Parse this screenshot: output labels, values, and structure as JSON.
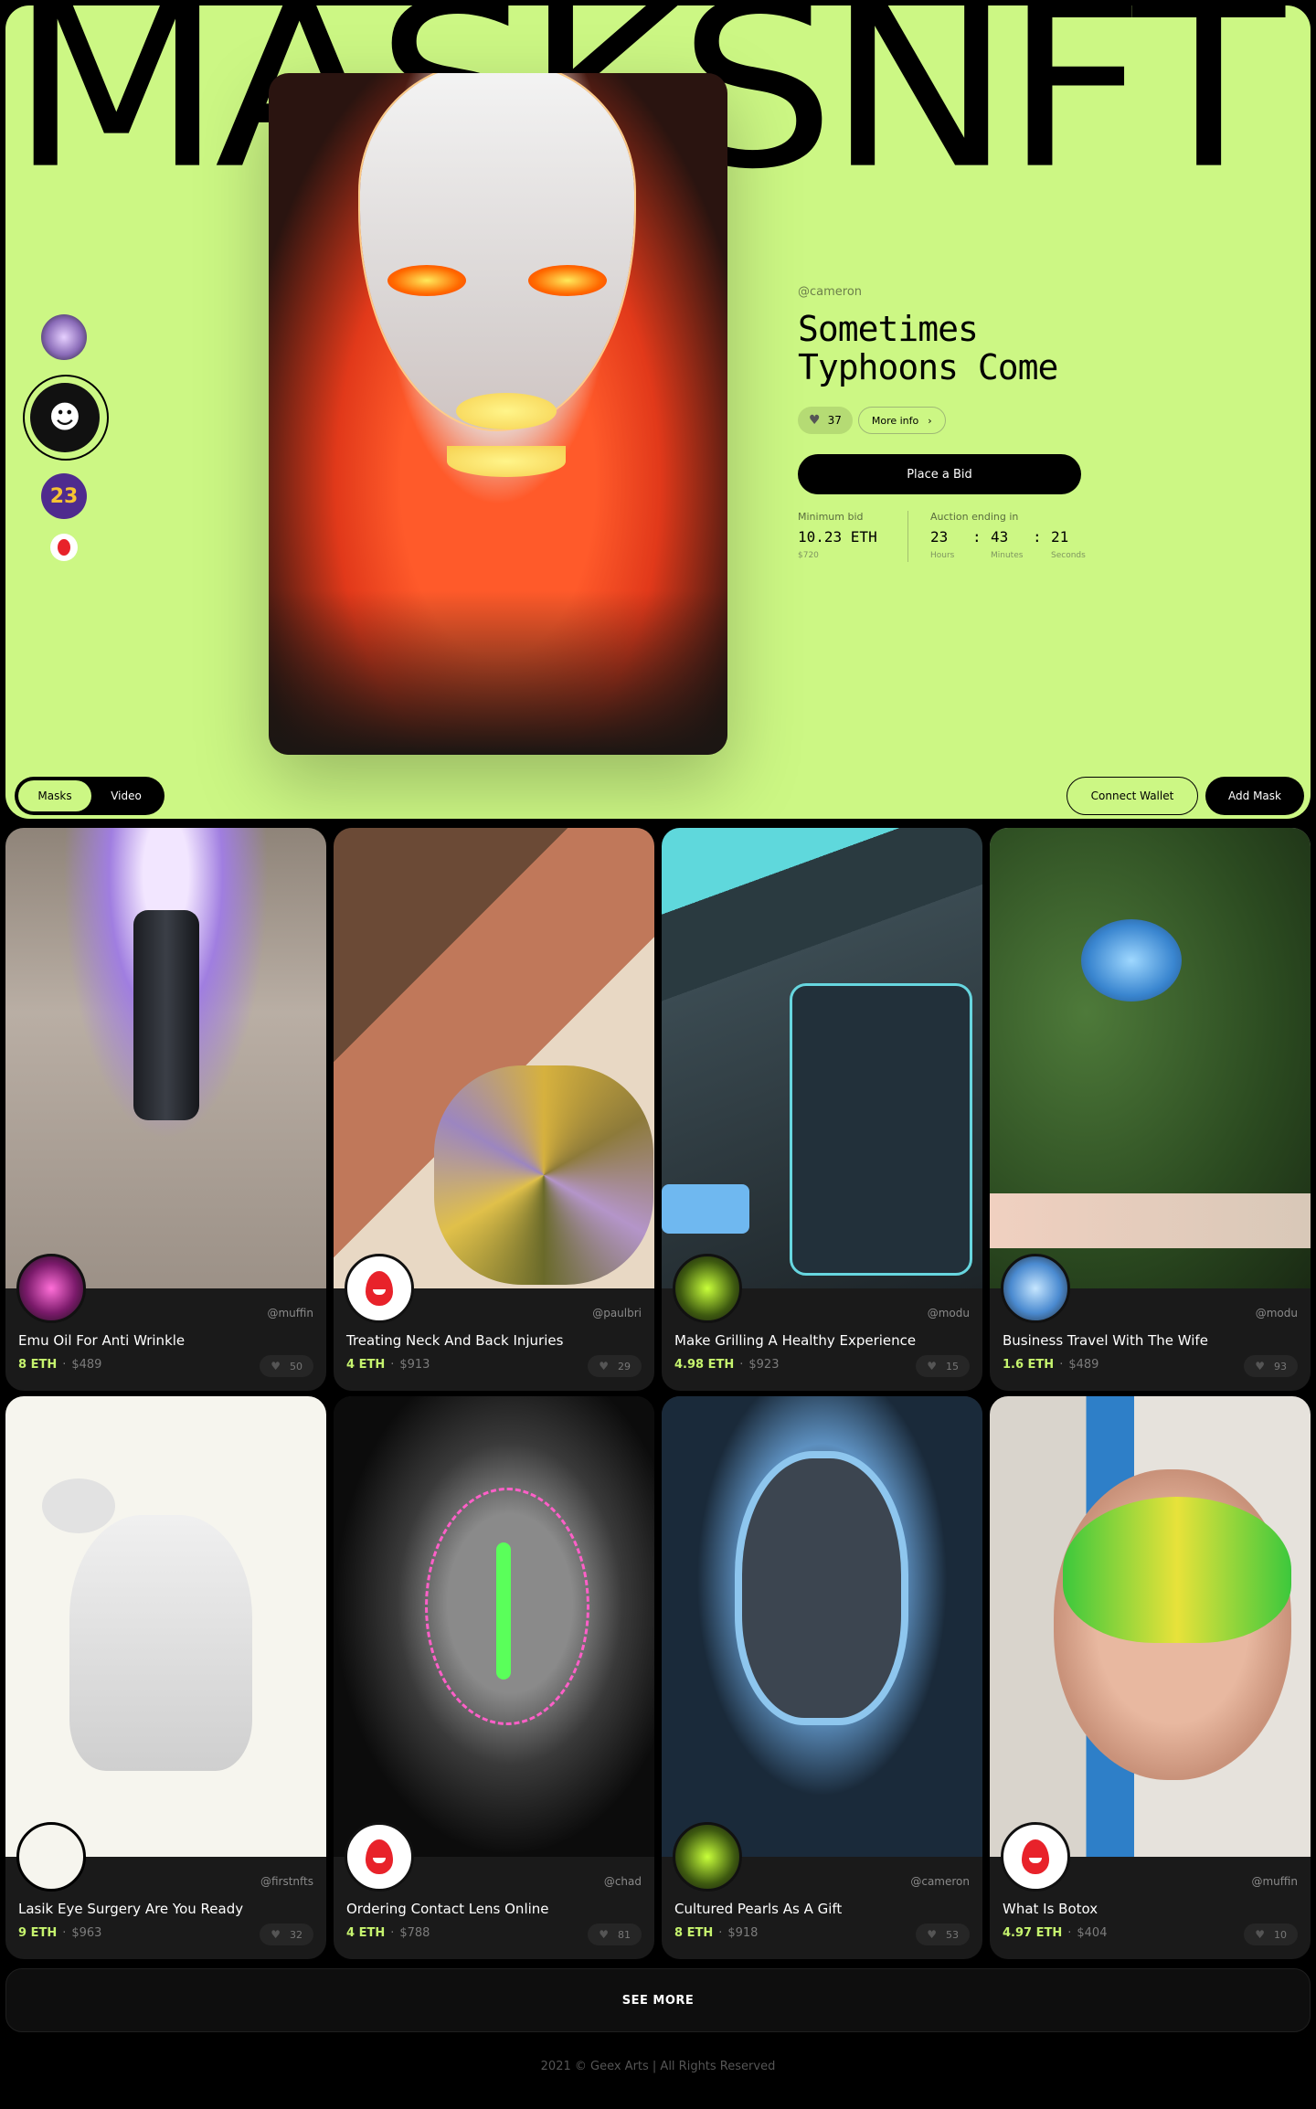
{
  "brand": {
    "logo": "MASKSNFT"
  },
  "featured": {
    "handle": "@cameron",
    "title": "Sometimes Typhoons Come",
    "likes": "37",
    "more_info_label": "More info",
    "bid_button_label": "Place a Bid",
    "min_bid_label": "Minimum bid",
    "min_bid_value": "10.23 ETH",
    "min_bid_usd": "$720",
    "auction_label": "Auction ending in",
    "timer": {
      "hours": "23",
      "minutes": "43",
      "seconds": "21",
      "hours_label": "Hours",
      "minutes_label": "Minutes",
      "seconds_label": "Seconds",
      "separator": ":"
    }
  },
  "toggle": {
    "masks": "Masks",
    "video": "Video"
  },
  "header_actions": {
    "connect_wallet": "Connect Wallet",
    "add_mask": "Add Mask"
  },
  "cards": [
    {
      "owner": "@muffin",
      "name": "Emu Oil For Anti Wrinkle",
      "eth": "8 ETH",
      "usd": "$489",
      "likes": "50"
    },
    {
      "owner": "@paulbri",
      "name": "Treating Neck And Back Injuries",
      "eth": "4 ETH",
      "usd": "$913",
      "likes": "29"
    },
    {
      "owner": "@modu",
      "name": "Make Grilling A Healthy Experience",
      "eth": "4.98 ETH",
      "usd": "$923",
      "likes": "15"
    },
    {
      "owner": "@modu",
      "name": "Business Travel With The Wife",
      "eth": "1.6 ETH",
      "usd": "$489",
      "likes": "93"
    },
    {
      "owner": "@firstnfts",
      "name": "Lasik Eye Surgery Are You Ready",
      "eth": "9 ETH",
      "usd": "$963",
      "likes": "32"
    },
    {
      "owner": "@chad",
      "name": "Ordering Contact Lens Online",
      "eth": "4 ETH",
      "usd": "$788",
      "likes": "81"
    },
    {
      "owner": "@cameron",
      "name": "Cultured Pearls As A Gift",
      "eth": "8 ETH",
      "usd": "$918",
      "likes": "53"
    },
    {
      "owner": "@muffin",
      "name": "What Is Botox",
      "eth": "4.97 ETH",
      "usd": "$404",
      "likes": "10"
    }
  ],
  "price_separator": "·",
  "see_more_label": "SEE MORE",
  "footer": "2021 © Geex Arts | All Rights Reserved",
  "icons": {
    "heart": "heart-icon",
    "chevron": "chevron-right-icon"
  },
  "colors": {
    "accent": "#ccf784",
    "eth": "#c6f46e",
    "bg": "#000000"
  }
}
